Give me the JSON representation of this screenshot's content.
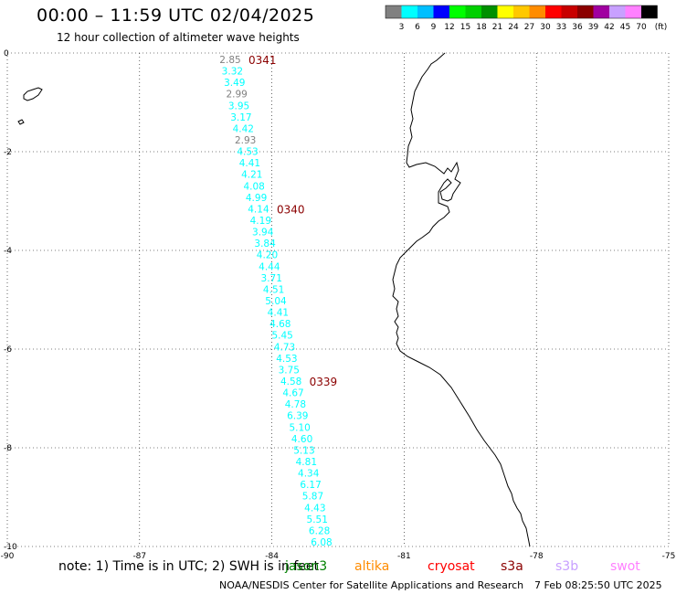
{
  "header": {
    "title": "00:00 – 11:59 UTC 02/04/2025",
    "subtitle": "12 hour collection of altimeter wave heights"
  },
  "colorbar": {
    "colors": [
      "#808080",
      "#00ffff",
      "#00bfff",
      "#0000ff",
      "#00ff00",
      "#00d000",
      "#009000",
      "#ffff00",
      "#ffc800",
      "#ff8c00",
      "#ff0000",
      "#c80000",
      "#8b0000",
      "#a000a0",
      "#c8a0ff",
      "#ff80ff",
      "#000000"
    ],
    "labels": [
      "3",
      "6",
      "9",
      "12",
      "15",
      "18",
      "21",
      "24",
      "27",
      "30",
      "33",
      "36",
      "39",
      "42",
      "45",
      "70"
    ],
    "unit": "(ft)"
  },
  "map": {
    "lon_range": [
      -90,
      -75
    ],
    "lat_range": [
      -10,
      0
    ],
    "x_ticks": [
      "-90",
      "-87",
      "-84",
      "-81",
      "-78",
      "-75"
    ],
    "y_ticks": [
      "0",
      "-2",
      "-4",
      "-6",
      "-8",
      "-10"
    ]
  },
  "track": {
    "values": [
      "2.85",
      "3.32",
      "3.49",
      "2.99",
      "3.95",
      "3.17",
      "4.42",
      "2.93",
      "4.53",
      "4.41",
      "4.21",
      "4.08",
      "4.99",
      "4.14",
      "4.19",
      "3.94",
      "3.84",
      "4.20",
      "4.44",
      "3.71",
      "4.51",
      "5.04",
      "4.41",
      "4.68",
      "5.45",
      "4.73",
      "4.53",
      "3.75",
      "4.58",
      "4.67",
      "4.78",
      "6.39",
      "5.10",
      "4.60",
      "5.13",
      "4.81",
      "4.34",
      "6.17",
      "5.87",
      "4.43",
      "5.51",
      "6.28",
      "6.08"
    ],
    "time_labels": [
      {
        "text": "0341",
        "index": 0
      },
      {
        "text": "0340",
        "index": 13
      },
      {
        "text": "0339",
        "index": 28
      }
    ]
  },
  "footer": {
    "note": "note: 1) Time is in UTC; 2) SWH is in feet",
    "satellites": [
      {
        "name": "jason3",
        "color": "#008000"
      },
      {
        "name": "altika",
        "color": "#ff8c00"
      },
      {
        "name": "cryosat",
        "color": "#ff0000"
      },
      {
        "name": "s3a",
        "color": "#8b0000"
      },
      {
        "name": "s3b",
        "color": "#c8a0ff"
      },
      {
        "name": "swot",
        "color": "#ff80ff"
      }
    ],
    "credit": "NOAA/NESDIS Center for Satellite Applications and Research",
    "timestamp": "7 Feb 08:25:50 UTC 2025"
  }
}
